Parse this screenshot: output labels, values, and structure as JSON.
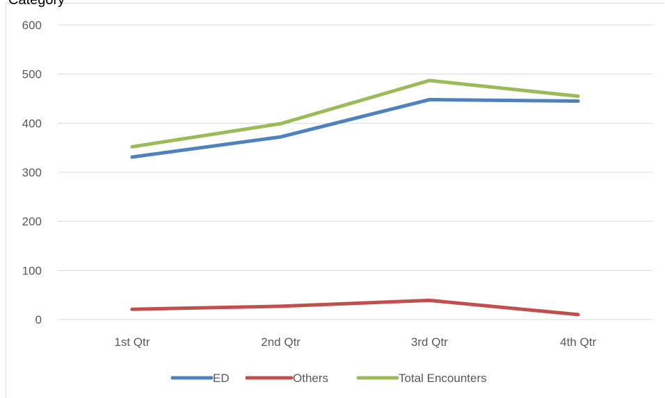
{
  "chart_data": {
    "type": "line",
    "title": "Category",
    "categories": [
      "1st Qtr",
      "2nd Qtr",
      "3rd Qtr",
      "4th Qtr"
    ],
    "series": [
      {
        "name": "ED",
        "values": [
          331,
          372,
          448,
          445
        ],
        "color": "#4f81bd"
      },
      {
        "name": "Others",
        "values": [
          21,
          27,
          39,
          10
        ],
        "color": "#c0504d"
      },
      {
        "name": "Total Encounters",
        "values": [
          352,
          399,
          487,
          455
        ],
        "color": "#9bbb59"
      }
    ],
    "ylim": [
      0,
      600
    ],
    "yticks": [
      0,
      100,
      200,
      300,
      400,
      500,
      600
    ],
    "grid": true,
    "legend": "bottom"
  }
}
